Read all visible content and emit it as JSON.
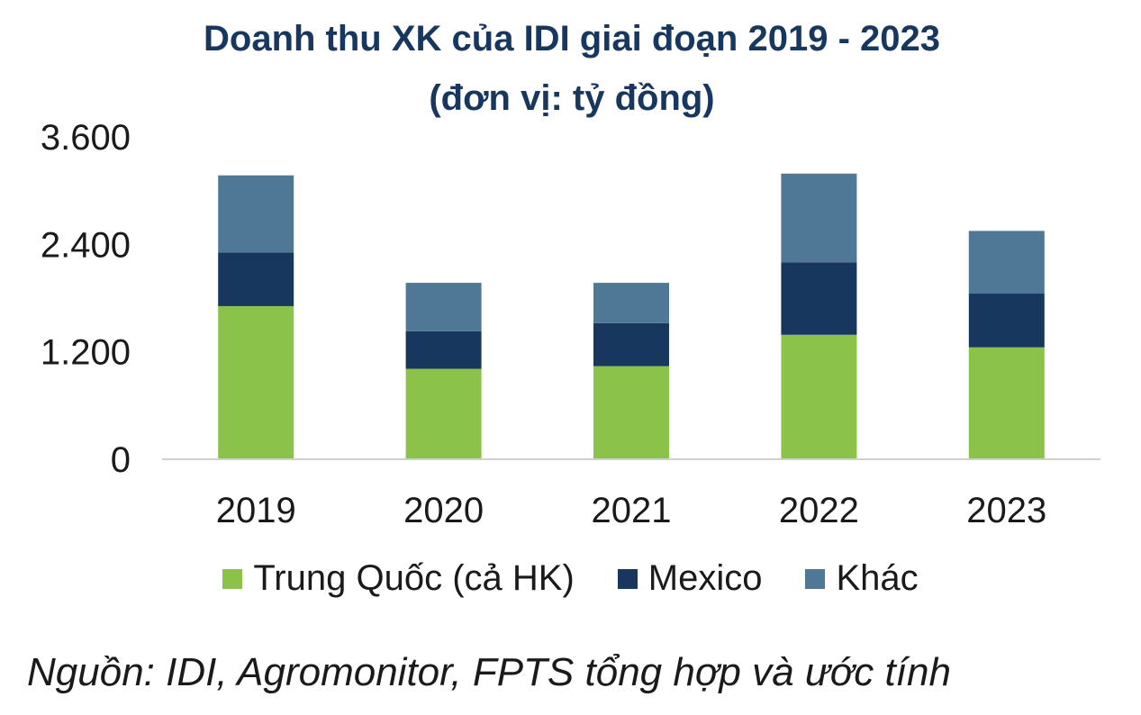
{
  "chart_data": {
    "type": "bar",
    "stacked": true,
    "title": "Doanh thu XK của IDI giai đoạn 2019 - 2023",
    "subtitle": "(đơn vị: tỷ đồng)",
    "categories": [
      "2019",
      "2020",
      "2021",
      "2022",
      "2023"
    ],
    "series": [
      {
        "name": "Trung Quốc (cả HK)",
        "color": "#8bc34a",
        "values": [
          1710,
          1010,
          1040,
          1390,
          1250
        ]
      },
      {
        "name": "Mexico",
        "color": "#17375e",
        "values": [
          600,
          420,
          480,
          810,
          600
        ]
      },
      {
        "name": "Khác",
        "color": "#4e7896",
        "values": [
          860,
          540,
          450,
          990,
          700
        ]
      }
    ],
    "y_ticks": [
      "3.600",
      "2.400",
      "1.200",
      "0"
    ],
    "y_tick_values": [
      3600,
      2400,
      1200,
      0
    ],
    "ylim": [
      0,
      3600
    ],
    "grid": false,
    "legend_position": "bottom"
  },
  "source": "Nguồn: IDI, Agromonitor, FPTS tổng hợp và ước tính"
}
